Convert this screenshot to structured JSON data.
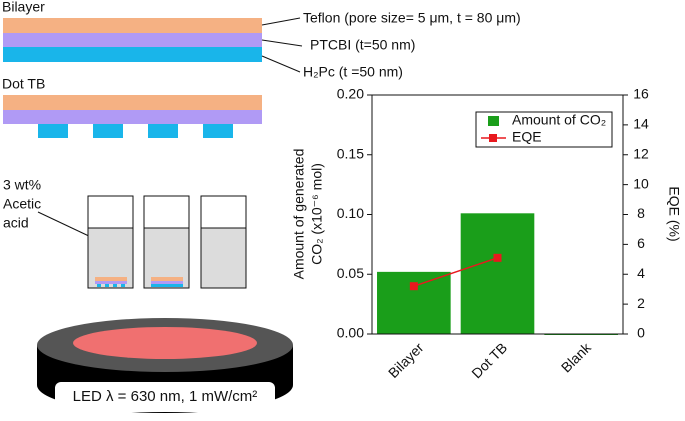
{
  "diagram": {
    "bilayer_label": "Bilayer",
    "teflon_label": "Teflon (pore size= 5 μm, t = 80 μm)",
    "ptcbi_label": "PTCBI (t=50 nm)",
    "h2pc_label": "H₂Pc (t =50 nm)",
    "dot_tb_label": "Dot TB",
    "acid_label": [
      "3 wt%",
      "Acetic",
      "acid"
    ],
    "led_label": "LED λ = 630 nm, 1 mW/cm²"
  },
  "chart_data": {
    "type": "bar",
    "categories": [
      "Bilayer",
      "Dot TB",
      "Blank"
    ],
    "ylabel": [
      "Amount of generated",
      "CO₂ (x10⁻⁶ mol)"
    ],
    "y2label": "EQE (%)",
    "series": [
      {
        "name": "Amount of CO₂",
        "color": "#1a9e1a",
        "type": "bar",
        "values": [
          0.052,
          0.101,
          0
        ]
      },
      {
        "name": "EQE",
        "color": "#e8191e",
        "type": "line",
        "axis": "y2",
        "values": [
          3.2,
          5.1,
          null
        ]
      }
    ],
    "ylim": [
      0,
      0.2
    ],
    "yticks": [
      {
        "value": 0,
        "label": "0.00"
      },
      {
        "value": 0.05,
        "label": "0.05"
      },
      {
        "value": 0.1,
        "label": "0.10"
      },
      {
        "value": 0.15,
        "label": "0.15"
      },
      {
        "value": 0.2,
        "label": "0.20"
      }
    ],
    "y2lim": [
      0,
      16
    ],
    "y2ticks": [
      0,
      2,
      4,
      6,
      8,
      10,
      12,
      14,
      16
    ],
    "legend": "upper-right"
  }
}
